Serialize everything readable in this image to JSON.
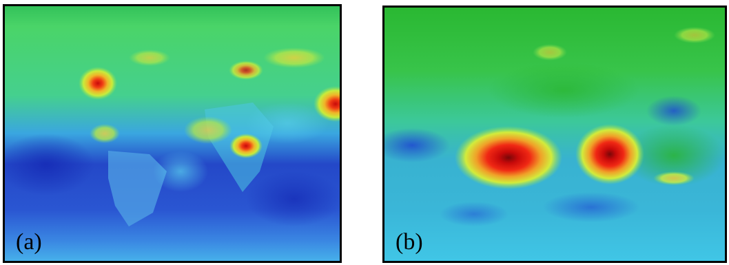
{
  "figure": {
    "panels": [
      {
        "label": "(a)",
        "colormap": "jet"
      },
      {
        "label": "(b)",
        "colormap": "jet"
      }
    ],
    "colors": {
      "deep_blue": "#1428c8",
      "blue": "#2e6fe0",
      "cyan": "#3cc8e6",
      "teal_green": "#3cd07a",
      "green": "#2ec23a",
      "yellow": "#e8f03a",
      "orange": "#f08c1e",
      "red": "#e01e14",
      "dark_red": "#8c0a0a",
      "border": "#000000"
    }
  }
}
